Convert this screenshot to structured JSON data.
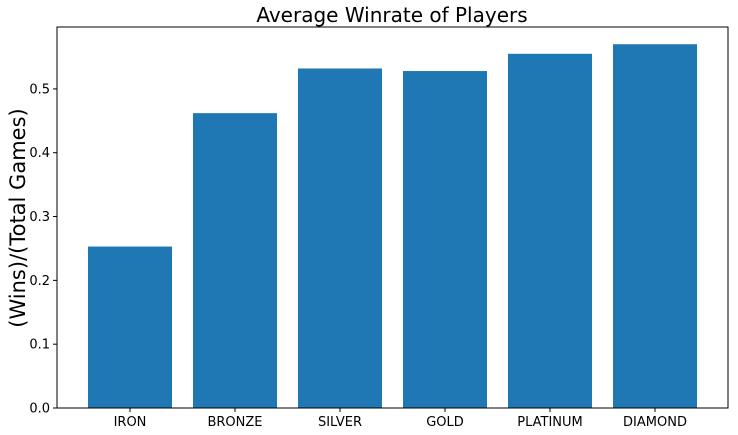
{
  "chart_data": {
    "type": "bar",
    "title": "Average Winrate of Players",
    "xlabel": "",
    "ylabel": "(Wins)/(Total Games)",
    "categories": [
      "IRON",
      "BRONZE",
      "SILVER",
      "GOLD",
      "PLATINUM",
      "DIAMOND"
    ],
    "values": [
      0.253,
      0.462,
      0.532,
      0.528,
      0.555,
      0.57
    ],
    "ylim": [
      0,
      0.597
    ],
    "yticks": [
      0.0,
      0.1,
      0.2,
      0.3,
      0.4,
      0.5
    ],
    "ytick_labels": [
      "0.0",
      "0.1",
      "0.2",
      "0.3",
      "0.4",
      "0.5"
    ],
    "bar_color": "#1f77b4",
    "grid": false,
    "legend": "none"
  }
}
